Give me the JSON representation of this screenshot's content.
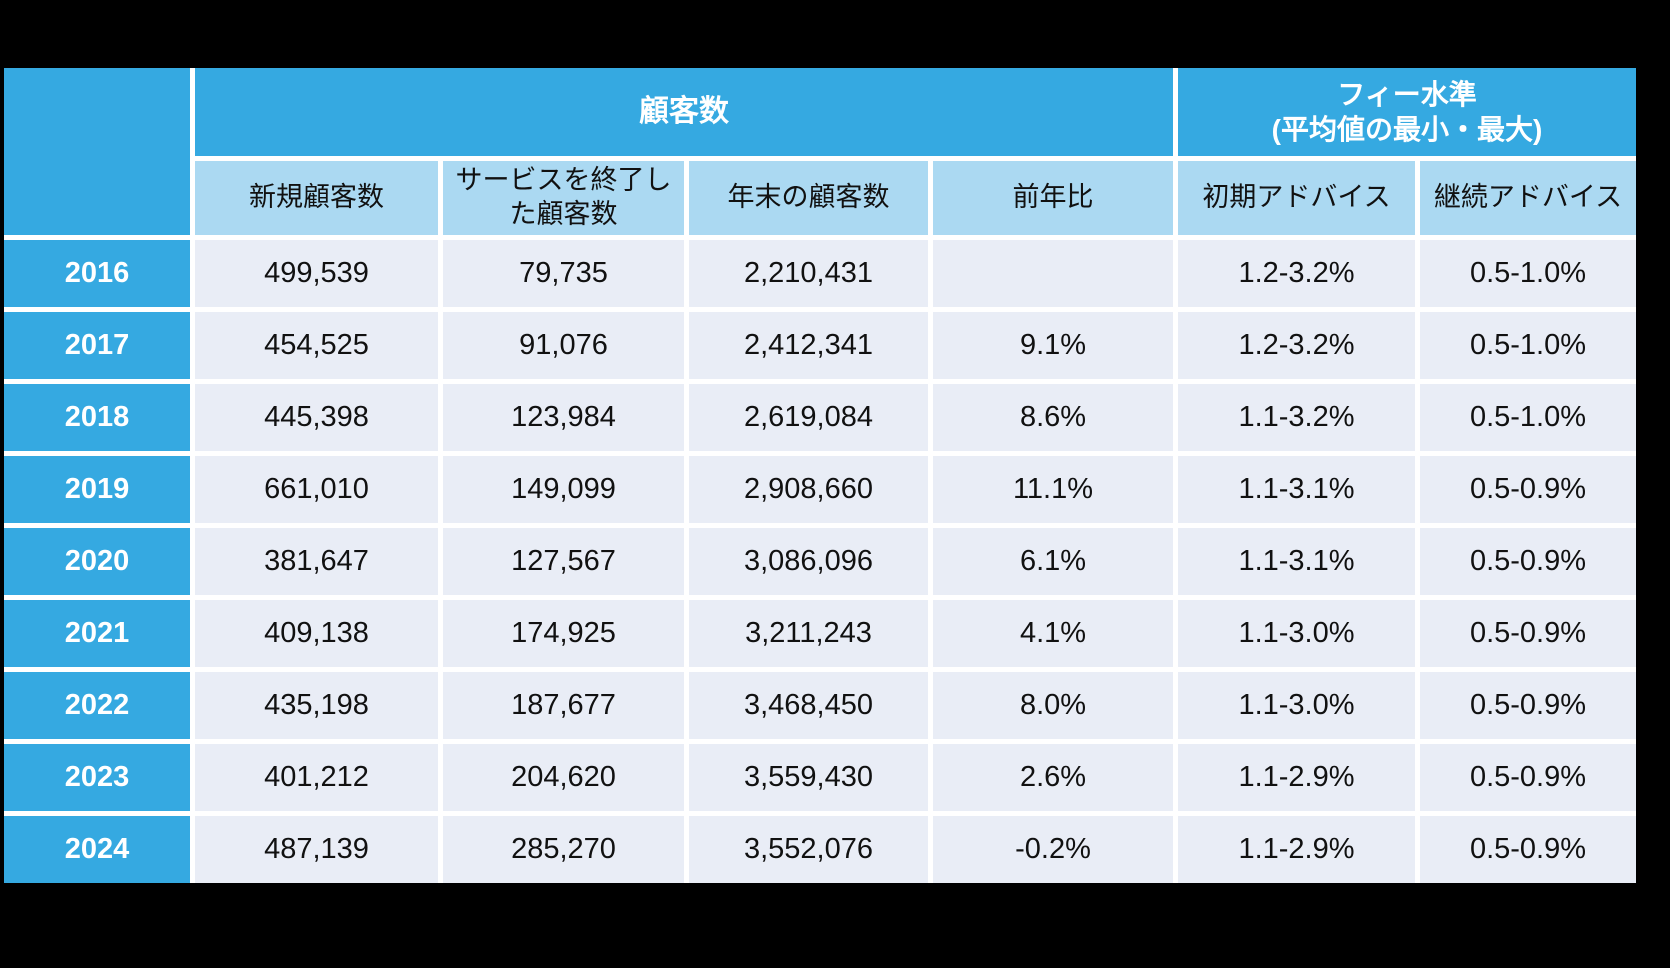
{
  "colors": {
    "page_background": "#000000",
    "header_blue": "#35a9e1",
    "header_light_blue": "#abd9f2",
    "data_row_background": "#e9edf6",
    "grid_gap": "#ffffff",
    "header_text": "#ffffff",
    "data_text": "#111111"
  },
  "chart_data": {
    "type": "table",
    "group_headers": [
      {
        "label": "顧客数",
        "colspan": 4
      },
      {
        "label": "フィー水準\n(平均値の最小・最大)",
        "colspan": 2
      }
    ],
    "row_header_label": "",
    "column_headers": [
      "新規顧客数",
      "サービスを終了した顧客数",
      "年末の顧客数",
      "前年比",
      "初期アドバイス",
      "継続アドバイス"
    ],
    "rows": [
      {
        "year": "2016",
        "cells": [
          "499,539",
          "79,735",
          "2,210,431",
          "",
          "1.2-3.2%",
          "0.5-1.0%"
        ]
      },
      {
        "year": "2017",
        "cells": [
          "454,525",
          "91,076",
          "2,412,341",
          "9.1%",
          "1.2-3.2%",
          "0.5-1.0%"
        ]
      },
      {
        "year": "2018",
        "cells": [
          "445,398",
          "123,984",
          "2,619,084",
          "8.6%",
          "1.1-3.2%",
          "0.5-1.0%"
        ]
      },
      {
        "year": "2019",
        "cells": [
          "661,010",
          "149,099",
          "2,908,660",
          "11.1%",
          "1.1-3.1%",
          "0.5-0.9%"
        ]
      },
      {
        "year": "2020",
        "cells": [
          "381,647",
          "127,567",
          "3,086,096",
          "6.1%",
          "1.1-3.1%",
          "0.5-0.9%"
        ]
      },
      {
        "year": "2021",
        "cells": [
          "409,138",
          "174,925",
          "3,211,243",
          "4.1%",
          "1.1-3.0%",
          "0.5-0.9%"
        ]
      },
      {
        "year": "2022",
        "cells": [
          "435,198",
          "187,677",
          "3,468,450",
          "8.0%",
          "1.1-3.0%",
          "0.5-0.9%"
        ]
      },
      {
        "year": "2023",
        "cells": [
          "401,212",
          "204,620",
          "3,559,430",
          "2.6%",
          "1.1-2.9%",
          "0.5-0.9%"
        ]
      },
      {
        "year": "2024",
        "cells": [
          "487,139",
          "285,270",
          "3,552,076",
          "-0.2%",
          "1.1-2.9%",
          "0.5-0.9%"
        ]
      }
    ]
  }
}
